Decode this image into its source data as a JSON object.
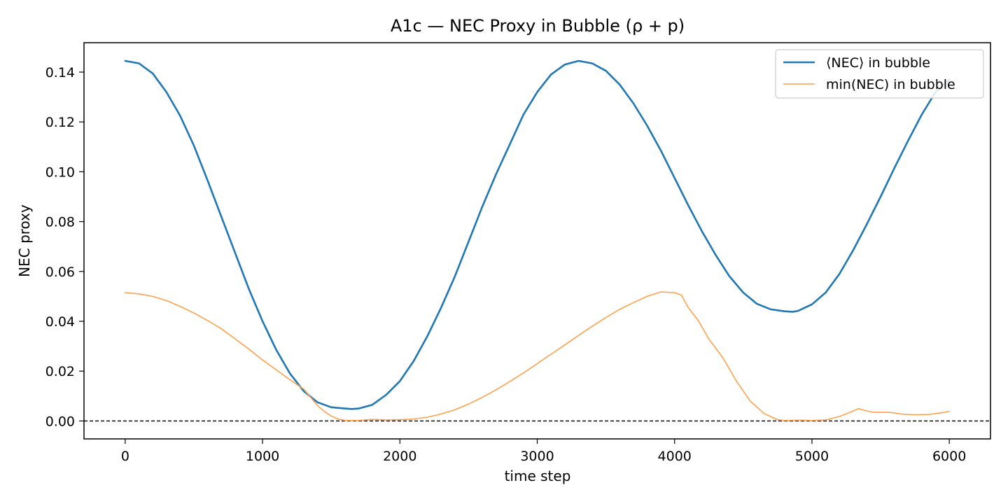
{
  "chart_data": {
    "type": "line",
    "title": "A1c — NEC Proxy in Bubble (ρ + p)",
    "xlabel": "time step",
    "ylabel": "NEC proxy",
    "xlim": [
      -300,
      6300
    ],
    "ylim": [
      -0.0072,
      0.1518
    ],
    "xticks": [
      0,
      1000,
      2000,
      3000,
      4000,
      5000,
      6000
    ],
    "xtick_labels": [
      "0",
      "1000",
      "2000",
      "3000",
      "4000",
      "5000",
      "6000"
    ],
    "yticks": [
      0.0,
      0.02,
      0.04,
      0.06,
      0.08,
      0.1,
      0.12,
      0.14
    ],
    "ytick_labels": [
      "0.00",
      "0.02",
      "0.04",
      "0.06",
      "0.08",
      "0.10",
      "0.12",
      "0.14"
    ],
    "grid": false,
    "legend_position": "top-right",
    "reference_line": {
      "y": 0,
      "style": "dashed",
      "color": "#000000"
    },
    "series": [
      {
        "name": "⟨NEC⟩ in bubble",
        "color": "#1f77b4",
        "x": [
          0,
          100,
          200,
          300,
          400,
          500,
          600,
          700,
          800,
          900,
          1000,
          1100,
          1200,
          1300,
          1400,
          1500,
          1600,
          1650,
          1700,
          1800,
          1900,
          2000,
          2100,
          2200,
          2300,
          2400,
          2500,
          2600,
          2700,
          2800,
          2900,
          3000,
          3100,
          3200,
          3300,
          3400,
          3500,
          3600,
          3700,
          3800,
          3900,
          4000,
          4100,
          4200,
          4300,
          4400,
          4500,
          4600,
          4700,
          4800,
          4860,
          4900,
          5000,
          5100,
          5200,
          5300,
          5400,
          5500,
          5600,
          5700,
          5800,
          5900,
          6000
        ],
        "y": [
          0.1445,
          0.1435,
          0.1395,
          0.132,
          0.1225,
          0.1105,
          0.0965,
          0.082,
          0.0675,
          0.053,
          0.04,
          0.0285,
          0.019,
          0.012,
          0.0075,
          0.0055,
          0.005,
          0.0048,
          0.005,
          0.0065,
          0.0105,
          0.016,
          0.024,
          0.034,
          0.0455,
          0.058,
          0.072,
          0.086,
          0.099,
          0.111,
          0.123,
          0.132,
          0.139,
          0.143,
          0.1445,
          0.1435,
          0.1405,
          0.135,
          0.1275,
          0.1185,
          0.1085,
          0.0975,
          0.0865,
          0.076,
          0.0665,
          0.058,
          0.0515,
          0.047,
          0.0448,
          0.044,
          0.0438,
          0.0442,
          0.0468,
          0.0515,
          0.059,
          0.0685,
          0.079,
          0.09,
          0.1015,
          0.1125,
          0.123,
          0.132,
          0.137
        ]
      },
      {
        "name": "min(NEC) in bubble",
        "color": "#ffa04d",
        "x": [
          0,
          100,
          200,
          300,
          400,
          500,
          600,
          700,
          800,
          900,
          1000,
          1100,
          1200,
          1300,
          1350,
          1400,
          1450,
          1500,
          1550,
          1600,
          1700,
          1800,
          1900,
          2000,
          2100,
          2200,
          2300,
          2400,
          2500,
          2600,
          2700,
          2800,
          2900,
          3000,
          3100,
          3200,
          3300,
          3400,
          3500,
          3600,
          3700,
          3800,
          3900,
          4000,
          4050,
          4100,
          4170,
          4250,
          4350,
          4450,
          4550,
          4650,
          4750,
          4800,
          4900,
          5000,
          5100,
          5200,
          5280,
          5340,
          5400,
          5450,
          5500,
          5580,
          5650,
          5750,
          5850,
          5950,
          6000
        ],
        "y": [
          0.0515,
          0.051,
          0.05,
          0.0483,
          0.046,
          0.0433,
          0.0403,
          0.037,
          0.033,
          0.0288,
          0.0245,
          0.0205,
          0.0165,
          0.0128,
          0.0095,
          0.0062,
          0.0038,
          0.002,
          0.0008,
          0.0002,
          0.0002,
          0.0006,
          0.0004,
          0.0005,
          0.0008,
          0.0015,
          0.0028,
          0.0045,
          0.0068,
          0.0095,
          0.0125,
          0.0158,
          0.0193,
          0.023,
          0.0268,
          0.0305,
          0.0343,
          0.038,
          0.0415,
          0.0448,
          0.0475,
          0.05,
          0.0518,
          0.0515,
          0.0505,
          0.0455,
          0.0405,
          0.0328,
          0.0255,
          0.016,
          0.008,
          0.003,
          0.0005,
          0.0002,
          0.0003,
          0.0002,
          0.0004,
          0.0018,
          0.0035,
          0.005,
          0.004,
          0.0035,
          0.0035,
          0.0034,
          0.0028,
          0.0025,
          0.0026,
          0.0033,
          0.0039
        ]
      }
    ]
  }
}
